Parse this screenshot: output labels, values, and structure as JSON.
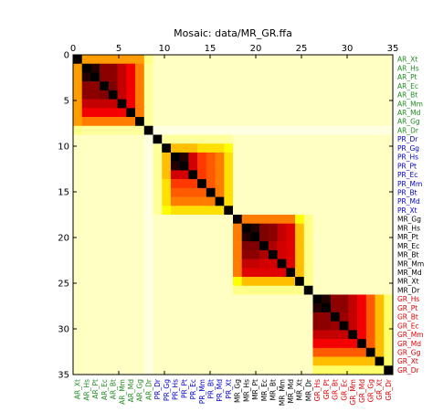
{
  "chart_data": {
    "type": "heatmap",
    "title": "Mosaic: data/MR_GR.ffa",
    "xlabel": "",
    "ylabel": "",
    "xlim": [
      0,
      35
    ],
    "ylim": [
      0,
      35
    ],
    "x_ticks": [
      "0",
      "5",
      "10",
      "15",
      "20",
      "25",
      "30",
      "35"
    ],
    "y_ticks": [
      "0",
      "5",
      "10",
      "15",
      "20",
      "25",
      "30",
      "35"
    ],
    "grid": false,
    "row_labels": [
      "AR_Xt",
      "AR_Hs",
      "AR_Pt",
      "AR_Ec",
      "AR_Bt",
      "AR_Mm",
      "AR_Md",
      "AR_Gg",
      "AR_Dr",
      "PR_Dr",
      "PR_Gg",
      "PR_Hs",
      "PR_Pt",
      "PR_Ec",
      "PR_Mm",
      "PR_Bt",
      "PR_Md",
      "PR_Xt",
      "MR_Gg",
      "MR_Hs",
      "MR_Pt",
      "MR_Ec",
      "MR_Bt",
      "MR_Mm",
      "MR_Md",
      "MR_Xt",
      "MR_Dr",
      "GR_Hs",
      "GR_Pt",
      "GR_Bt",
      "GR_Ec",
      "GR_Mm",
      "GR_Md",
      "GR_Gg",
      "GR_Xt",
      "GR_Dr"
    ],
    "column_labels": [
      "AR_Xt",
      "AR_Hs",
      "AR_Pt",
      "AR_Ec",
      "AR_Bt",
      "AR_Mm",
      "AR_Md",
      "AR_Gg",
      "AR_Dr",
      "PR_Dr",
      "PR_Gg",
      "PR_Hs",
      "PR_Pt",
      "PR_Ec",
      "PR_Mm",
      "PR_Bt",
      "PR_Md",
      "PR_Xt",
      "MR_Gg",
      "MR_Hs",
      "MR_Pt",
      "MR_Ec",
      "MR_Bt",
      "MR_Mm",
      "MR_Md",
      "MR_Xt",
      "MR_Dr",
      "GR_Hs",
      "GR_Pt",
      "GR_Bt",
      "GR_Ec",
      "GR_Mm",
      "GR_Md",
      "GR_Gg",
      "GR_Xt",
      "GR_Dr"
    ],
    "groups": [
      {
        "prefix": "AR",
        "start": 0,
        "end": 8,
        "color": "#228b22"
      },
      {
        "prefix": "PR",
        "start": 9,
        "end": 17,
        "color": "#0000cc"
      },
      {
        "prefix": "MR",
        "start": 18,
        "end": 26,
        "color": "#000000"
      },
      {
        "prefix": "GR",
        "start": 27,
        "end": 35,
        "color": "#dd0000"
      }
    ],
    "values_description_scale": "0 = white, 1 = black (hot colormap reversed)",
    "blocks": [
      {
        "start": 0,
        "matrix": [
          [
            1.0,
            0.4,
            0.4,
            0.4,
            0.4,
            0.4,
            0.4,
            0.4,
            0.12
          ],
          [
            0.4,
            1.0,
            0.95,
            0.8,
            0.8,
            0.72,
            0.65,
            0.45,
            0.1
          ],
          [
            0.4,
            0.95,
            1.0,
            0.8,
            0.8,
            0.72,
            0.65,
            0.45,
            0.1
          ],
          [
            0.4,
            0.8,
            0.8,
            1.0,
            0.82,
            0.72,
            0.65,
            0.45,
            0.1
          ],
          [
            0.4,
            0.8,
            0.8,
            0.82,
            1.0,
            0.72,
            0.65,
            0.45,
            0.1
          ],
          [
            0.4,
            0.72,
            0.72,
            0.72,
            0.72,
            1.0,
            0.65,
            0.45,
            0.1
          ],
          [
            0.4,
            0.65,
            0.65,
            0.65,
            0.65,
            0.65,
            1.0,
            0.45,
            0.1
          ],
          [
            0.4,
            0.45,
            0.45,
            0.45,
            0.45,
            0.45,
            0.45,
            1.0,
            0.1
          ],
          [
            0.12,
            0.1,
            0.1,
            0.1,
            0.1,
            0.1,
            0.1,
            0.1,
            1.0
          ]
        ]
      },
      {
        "start": 9,
        "matrix": [
          [
            1.0,
            0.1,
            0.1,
            0.1,
            0.1,
            0.1,
            0.1,
            0.1,
            0.1
          ],
          [
            0.1,
            1.0,
            0.35,
            0.35,
            0.35,
            0.3,
            0.3,
            0.3,
            0.25
          ],
          [
            0.1,
            0.35,
            1.0,
            0.95,
            0.7,
            0.55,
            0.5,
            0.45,
            0.3
          ],
          [
            0.1,
            0.35,
            0.95,
            1.0,
            0.7,
            0.55,
            0.5,
            0.45,
            0.3
          ],
          [
            0.1,
            0.35,
            0.7,
            0.7,
            1.0,
            0.55,
            0.5,
            0.45,
            0.3
          ],
          [
            0.1,
            0.3,
            0.55,
            0.55,
            0.55,
            1.0,
            0.5,
            0.45,
            0.3
          ],
          [
            0.1,
            0.3,
            0.5,
            0.5,
            0.5,
            0.5,
            1.0,
            0.45,
            0.3
          ],
          [
            0.1,
            0.3,
            0.45,
            0.45,
            0.45,
            0.45,
            0.45,
            1.0,
            0.3
          ],
          [
            0.1,
            0.25,
            0.3,
            0.3,
            0.3,
            0.3,
            0.3,
            0.3,
            1.0
          ]
        ]
      },
      {
        "start": 18,
        "matrix": [
          [
            1.0,
            0.45,
            0.45,
            0.45,
            0.45,
            0.45,
            0.45,
            0.25,
            0.12
          ],
          [
            0.45,
            1.0,
            0.95,
            0.82,
            0.8,
            0.72,
            0.68,
            0.35,
            0.12
          ],
          [
            0.45,
            0.95,
            1.0,
            0.82,
            0.8,
            0.72,
            0.68,
            0.35,
            0.12
          ],
          [
            0.45,
            0.82,
            0.82,
            1.0,
            0.75,
            0.7,
            0.68,
            0.35,
            0.12
          ],
          [
            0.45,
            0.8,
            0.8,
            0.75,
            1.0,
            0.7,
            0.68,
            0.35,
            0.12
          ],
          [
            0.45,
            0.72,
            0.72,
            0.7,
            0.7,
            1.0,
            0.68,
            0.35,
            0.12
          ],
          [
            0.45,
            0.68,
            0.68,
            0.68,
            0.68,
            0.68,
            1.0,
            0.35,
            0.12
          ],
          [
            0.25,
            0.35,
            0.35,
            0.35,
            0.35,
            0.35,
            0.35,
            1.0,
            0.12
          ],
          [
            0.12,
            0.12,
            0.12,
            0.12,
            0.12,
            0.12,
            0.12,
            0.12,
            1.0
          ]
        ]
      },
      {
        "start": 27,
        "matrix": [
          [
            1.0,
            0.95,
            0.8,
            0.8,
            0.72,
            0.65,
            0.5,
            0.35,
            0.15
          ],
          [
            0.95,
            1.0,
            0.8,
            0.8,
            0.72,
            0.65,
            0.5,
            0.35,
            0.15
          ],
          [
            0.8,
            0.8,
            1.0,
            0.78,
            0.72,
            0.65,
            0.5,
            0.35,
            0.15
          ],
          [
            0.8,
            0.8,
            0.78,
            1.0,
            0.72,
            0.65,
            0.5,
            0.35,
            0.15
          ],
          [
            0.72,
            0.72,
            0.72,
            0.72,
            1.0,
            0.65,
            0.5,
            0.35,
            0.15
          ],
          [
            0.65,
            0.65,
            0.65,
            0.65,
            0.65,
            1.0,
            0.5,
            0.35,
            0.15
          ],
          [
            0.5,
            0.5,
            0.5,
            0.5,
            0.5,
            0.5,
            1.0,
            0.35,
            0.15
          ],
          [
            0.35,
            0.35,
            0.35,
            0.35,
            0.35,
            0.35,
            0.35,
            1.0,
            0.15
          ],
          [
            0.15,
            0.15,
            0.15,
            0.15,
            0.15,
            0.15,
            0.15,
            0.15,
            1.0
          ]
        ]
      }
    ],
    "off_block_value": 0.06,
    "column_8_value": 0.03
  }
}
